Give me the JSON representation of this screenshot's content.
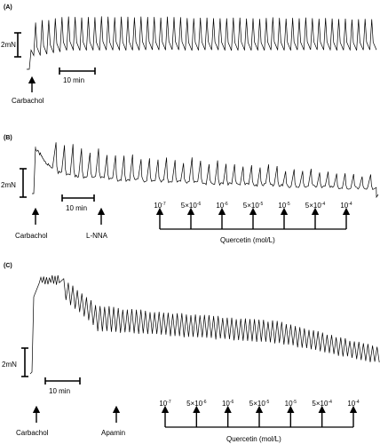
{
  "chart_data": [
    {
      "type": "line",
      "panel": "(A)",
      "scale_bar": {
        "force": "2mN",
        "time": "10 min"
      },
      "y_unit": "mN",
      "baseline_before_mN": 0,
      "tonic_mN": 1.6,
      "phasic_amplitude_mN": {
        "start": 2.8,
        "end": 2.6
      },
      "contraction_count": 52,
      "markers": [
        {
          "label": "Carbachol",
          "time_min": 0
        }
      ]
    },
    {
      "type": "line",
      "panel": "(B)",
      "scale_bar": {
        "force": "2mN",
        "time": "10 min"
      },
      "y_unit": "mN",
      "peak_mN": 3.3,
      "phasic_amplitude_mN": {
        "start": 2.2,
        "end": 1.0
      },
      "contraction_count": 38,
      "markers": [
        {
          "label": "Carbachol",
          "time_min": 0
        },
        {
          "label": "L-NNA",
          "time_min": 10
        }
      ],
      "concentration_axis": {
        "label": "Quercetin (mol/L)",
        "ticks": [
          {
            "mantissa": "",
            "exponent": "-7"
          },
          {
            "mantissa": "5×",
            "exponent": "-6"
          },
          {
            "mantissa": "",
            "exponent": "-6"
          },
          {
            "mantissa": "5×",
            "exponent": "-5"
          },
          {
            "mantissa": "",
            "exponent": "-5"
          },
          {
            "mantissa": "5×",
            "exponent": "-4"
          },
          {
            "mantissa": "",
            "exponent": "-4"
          }
        ]
      }
    },
    {
      "type": "line",
      "panel": "(C)",
      "scale_bar": {
        "force": "2mN",
        "time": "10 min"
      },
      "y_unit": "mN",
      "peak_mN": 6.8,
      "phasic_amplitude_mN": {
        "start": 1.8,
        "end": 1.2
      },
      "contraction_count": 70,
      "markers": [
        {
          "label": "Carbachol",
          "time_min": 0
        },
        {
          "label": "Apamin",
          "time_min": 15
        }
      ],
      "concentration_axis": {
        "label": "Quercetin (mol/L)",
        "ticks": [
          {
            "mantissa": "",
            "exponent": "-7"
          },
          {
            "mantissa": "5×",
            "exponent": "-6"
          },
          {
            "mantissa": "",
            "exponent": "-6"
          },
          {
            "mantissa": "5×",
            "exponent": "-5"
          },
          {
            "mantissa": "",
            "exponent": "-5"
          },
          {
            "mantissa": "5×",
            "exponent": "-4"
          },
          {
            "mantissa": "",
            "exponent": "-4"
          }
        ]
      }
    }
  ]
}
